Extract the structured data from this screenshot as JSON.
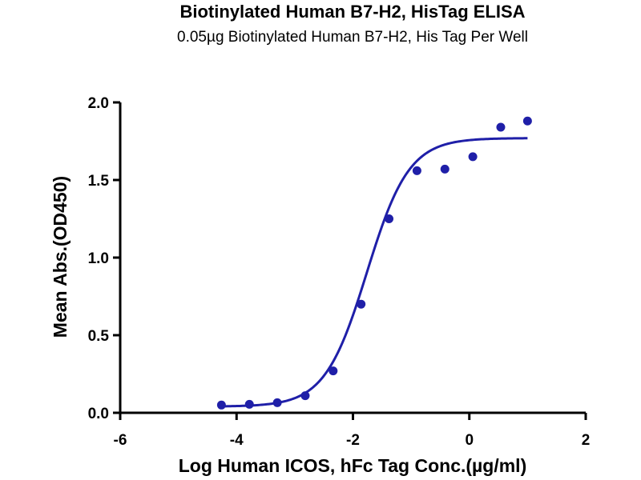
{
  "chart_data": {
    "type": "scatter",
    "title": "Biotinylated Human B7-H2, HisTag ELISA",
    "subtitle": "0.05µg Biotinylated Human B7-H2, His Tag Per Well",
    "xlabel": "Log Human ICOS, hFc Tag Conc.(µg/ml)",
    "ylabel": "Mean Abs.(OD450)",
    "xlim": [
      -6,
      2
    ],
    "ylim": [
      0,
      2.0
    ],
    "x_ticks": [
      "-6",
      "-4",
      "-2",
      "0",
      "2"
    ],
    "y_ticks": [
      "0.0",
      "0.5",
      "1.0",
      "1.5",
      "2.0"
    ],
    "x_tick_values": [
      -6,
      -4,
      -2,
      0,
      2
    ],
    "y_tick_values": [
      0,
      0.5,
      1.0,
      1.5,
      2.0
    ],
    "grid": false,
    "colors": {
      "series": "#1f1fa8",
      "axis": "#000000"
    },
    "series": [
      {
        "x": [
          -4.26,
          -3.78,
          -3.3,
          -2.82,
          -2.34,
          -1.86,
          -1.38,
          -0.9,
          -0.42,
          0.06,
          0.54,
          1.0
        ],
        "y": [
          0.05,
          0.055,
          0.065,
          0.11,
          0.27,
          0.7,
          1.25,
          1.56,
          1.57,
          1.65,
          1.84,
          1.88
        ]
      }
    ],
    "fit_curve": {
      "model": "4PL",
      "bottom": 0.04,
      "top": 1.77,
      "log_ec50": -1.76,
      "hill_slope": 1.2,
      "x_range": [
        -4.26,
        1.0
      ]
    }
  }
}
